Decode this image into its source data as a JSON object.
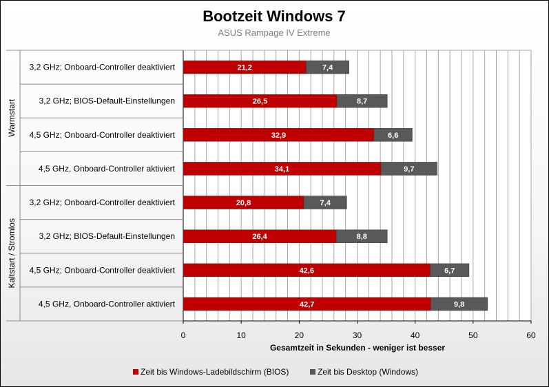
{
  "chart_data": {
    "type": "bar",
    "orientation": "horizontal",
    "stacked": true,
    "title": "Bootzeit Windows 7",
    "subtitle": "ASUS Rampage IV Extreme",
    "xlabel": "Gesamtzeit in Sekunden - weniger ist besser",
    "xlim": [
      0,
      60
    ],
    "xticks": [
      "0",
      "10",
      "20",
      "30",
      "40",
      "50",
      "60"
    ],
    "grid": true,
    "legend_position": "bottom",
    "groups": [
      {
        "name": "Warmstart",
        "rows": [
          0,
          1,
          2,
          3
        ]
      },
      {
        "name": "Kaltstart / Stromlos",
        "rows": [
          4,
          5,
          6,
          7
        ]
      }
    ],
    "categories": [
      "3,2 GHz; Onboard-Controller deaktiviert",
      "3,2 GHz; BIOS-Default-Einstellungen",
      "4,5 GHz; Onboard-Controller deaktiviert",
      "4,5 GHz, Onboard-Controller aktiviert",
      "3,2 GHz; Onboard-Controller deaktiviert",
      "3,2 GHz; BIOS-Default-Einstellungen",
      "4,5 GHz; Onboard-Controller deaktiviert",
      "4,5 GHz, Onboard-Controller aktiviert"
    ],
    "series": [
      {
        "name": "Zeit bis Windows-Ladebildschirm (BIOS)",
        "color": "#c00000",
        "values": [
          21.2,
          26.5,
          32.9,
          34.1,
          20.8,
          26.4,
          42.6,
          42.7
        ],
        "labels": [
          "21,2",
          "26,5",
          "32,9",
          "34,1",
          "20,8",
          "26,4",
          "42,6",
          "42,7"
        ]
      },
      {
        "name": "Zeit bis Desktop (Windows)",
        "color": "#595959",
        "values": [
          7.4,
          8.7,
          6.6,
          9.7,
          7.4,
          8.8,
          6.7,
          9.8
        ],
        "labels": [
          "7,4",
          "8,7",
          "6,6",
          "9,7",
          "7,4",
          "8,8",
          "6,7",
          "9,8"
        ]
      }
    ]
  }
}
